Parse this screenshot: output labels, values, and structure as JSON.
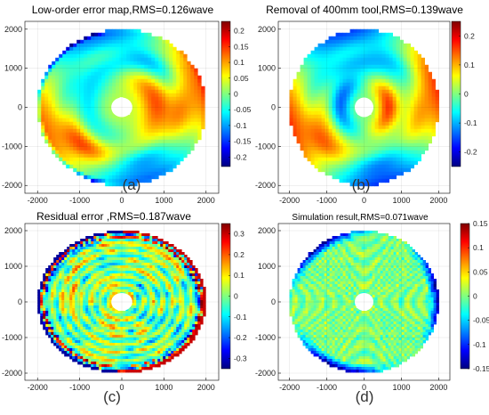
{
  "chart_data": [
    {
      "type": "heatmap",
      "panel_label": "(a)",
      "title": "Low-order error map,RMS=0.126wave",
      "rms_wave": 0.126,
      "xlim": [
        -2300,
        2300
      ],
      "ylim": [
        -2200,
        2200
      ],
      "xticks": [
        -2000,
        -1000,
        0,
        1000,
        2000
      ],
      "yticks": [
        -2000,
        -1000,
        0,
        1000,
        2000
      ],
      "colorbar": {
        "min": -0.23,
        "max": 0.23,
        "ticks": [
          0.2,
          0.15,
          0.1,
          0.05,
          0,
          -0.05,
          -0.1,
          -0.15,
          -0.2
        ],
        "tick_labels": [
          "0.2",
          "0.15",
          "0.1",
          "0.05",
          "0",
          "-0.05",
          "-0.1",
          "-0.15",
          "-0.2"
        ]
      },
      "colormap": "jet",
      "aperture": {
        "outer_radius": 2000,
        "inner_radius": 250
      },
      "pattern": "lowfreq"
    },
    {
      "type": "heatmap",
      "panel_label": "(b)",
      "title": "Removal of 400mm tool,RMS=0.139wave",
      "rms_wave": 0.139,
      "xlim": [
        -2300,
        2300
      ],
      "ylim": [
        -2200,
        2200
      ],
      "xticks": [
        -2000,
        -1000,
        0,
        1000,
        2000
      ],
      "yticks": [
        -2000,
        -1000,
        0,
        1000,
        2000
      ],
      "colorbar": {
        "min": -0.25,
        "max": 0.25,
        "ticks": [
          0.2,
          0.1,
          0,
          -0.1,
          -0.2
        ],
        "tick_labels": [
          "0.2",
          "0.1",
          "0",
          "-0.1",
          "-0.2"
        ]
      },
      "colormap": "jet",
      "aperture": {
        "outer_radius": 2000,
        "inner_radius": 250
      },
      "pattern": "lowfreq"
    },
    {
      "type": "heatmap",
      "panel_label": "(c)",
      "title": "Residual error ,RMS=0.187wave",
      "rms_wave": 0.187,
      "xlim": [
        -2300,
        2300
      ],
      "ylim": [
        -2200,
        2200
      ],
      "xticks": [
        -2000,
        -1000,
        0,
        1000,
        2000
      ],
      "yticks": [
        -2000,
        -1000,
        0,
        1000,
        2000
      ],
      "colorbar": {
        "min": -0.35,
        "max": 0.35,
        "ticks": [
          0.3,
          0.2,
          0.1,
          0,
          -0.1,
          -0.2,
          -0.3
        ],
        "tick_labels": [
          "0.3",
          "0.2",
          "0.1",
          "0",
          "-0.1",
          "-0.2",
          "-0.3"
        ]
      },
      "colormap": "jet",
      "aperture": {
        "outer_radius": 2000,
        "inner_radius": 250
      },
      "pattern": "residual"
    },
    {
      "type": "heatmap",
      "panel_label": "(d)",
      "title": "Simulation result,RMS=0.071wave",
      "rms_wave": 0.071,
      "xlim": [
        -2300,
        2300
      ],
      "ylim": [
        -2200,
        2200
      ],
      "xticks": [
        -2000,
        -1000,
        0,
        1000,
        2000
      ],
      "yticks": [
        -2000,
        -1000,
        0,
        1000,
        2000
      ],
      "colorbar": {
        "min": -0.15,
        "max": 0.15,
        "ticks": [
          0.15,
          0.1,
          0.05,
          0,
          -0.05,
          -0.1,
          -0.15
        ],
        "tick_labels": [
          "0.15",
          "0.1",
          "0.05",
          "0",
          "-0.05",
          "-0.1",
          "-0.15"
        ]
      },
      "colormap": "jet",
      "aperture": {
        "outer_radius": 2000,
        "inner_radius": 250
      },
      "pattern": "simulation"
    }
  ]
}
